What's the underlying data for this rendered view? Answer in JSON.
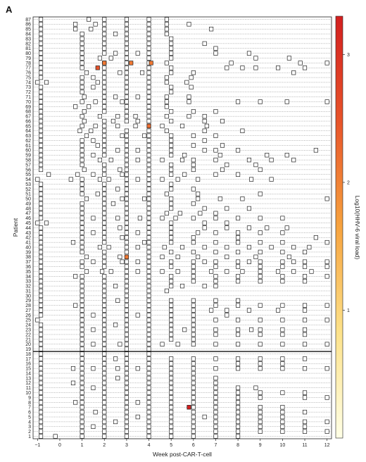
{
  "panel_label": "A",
  "chart_data": {
    "type": "heatmap",
    "title": "",
    "xlabel": "Week post-CAR-T-cell",
    "ylabel": "Patient",
    "xlim": [
      -1.2,
      12.2
    ],
    "x_ticks": [
      -1,
      0,
      1,
      2,
      3,
      4,
      5,
      6,
      7,
      8,
      9,
      10,
      11,
      12
    ],
    "patients": [
      1,
      2,
      3,
      4,
      5,
      6,
      7,
      8,
      9,
      10,
      11,
      12,
      13,
      14,
      15,
      16,
      17,
      18,
      19,
      20,
      21,
      22,
      23,
      24,
      25,
      26,
      27,
      28,
      29,
      30,
      31,
      32,
      33,
      34,
      35,
      36,
      37,
      38,
      39,
      40,
      41,
      42,
      43,
      44,
      45,
      46,
      47,
      48,
      49,
      50,
      51,
      52,
      53,
      54,
      55,
      56,
      57,
      58,
      59,
      60,
      61,
      62,
      63,
      64,
      65,
      66,
      67,
      68,
      69,
      70,
      71,
      72,
      73,
      74,
      75,
      76,
      77,
      78,
      79,
      80,
      81,
      82,
      83,
      84,
      85,
      86,
      87
    ],
    "group_separator_between": [
      18,
      19
    ],
    "colorbar": {
      "label": "Log10(HHV-6 viral load)",
      "range": [
        0,
        3.3
      ],
      "ticks": [
        1,
        2,
        3
      ],
      "colors": [
        "#ffffe6",
        "#fde28a",
        "#f7a33e",
        "#e8542a",
        "#d31f1f"
      ]
    },
    "tested_negative": {
      "87": [
        -0.85,
        1.3,
        2.0,
        3.0,
        4.0,
        4.8
      ],
      "86": [
        -0.85,
        0.7,
        1.6,
        2.0,
        3.0,
        4.0,
        4.8,
        5.8
      ],
      "85": [
        -0.85,
        0.7,
        1.4,
        2.0,
        3.0,
        4.0,
        4.8,
        6.8
      ],
      "84": [
        -0.85,
        1.0,
        2.0,
        2.5,
        3.0,
        4.0,
        4.8
      ],
      "83": [
        -0.85,
        1.0,
        2.0,
        3.0,
        4.0,
        5.0
      ],
      "82": [
        -0.85,
        1.0,
        2.0,
        3.0,
        4.0,
        5.0,
        6.5
      ],
      "81": [
        -0.85,
        1.0,
        2.0,
        3.0,
        4.0,
        5.0,
        7.0
      ],
      "80": [
        -0.85,
        1.0,
        2.0,
        2.5,
        3.0,
        3.5,
        4.0,
        5.0,
        7.0,
        8.5
      ],
      "79": [
        -0.85,
        1.0,
        1.8,
        2.3,
        3.0,
        4.0,
        5.0,
        8.8,
        10.3
      ],
      "78": [
        -0.85,
        1.0,
        2.0,
        3.0,
        4.0,
        4.8,
        7.7,
        10.8,
        12.0
      ],
      "77": [
        -0.85,
        1.0,
        2.0,
        3.0,
        4.0,
        5.0,
        7.5,
        8.2,
        8.8,
        9.8,
        11.0
      ],
      "76": [
        -0.85,
        1.2,
        2.0,
        2.7,
        3.0,
        3.7,
        4.0,
        5.0,
        6.0,
        10.5
      ],
      "75": [
        -0.85,
        1.0,
        1.5,
        2.0,
        3.0,
        4.0,
        4.8,
        5.9
      ],
      "74": [
        -1.0,
        -0.6,
        1.0,
        1.7,
        2.0,
        3.0,
        4.0,
        4.8,
        5.7
      ],
      "73": [
        -0.85,
        1.0,
        1.5,
        2.0,
        3.0,
        4.0,
        5.0,
        5.9
      ],
      "72": [
        -0.85,
        1.0,
        2.0,
        3.0,
        4.0,
        5.0
      ],
      "71": [
        -0.85,
        1.1,
        2.0,
        2.5,
        3.0,
        3.5,
        4.0,
        4.8,
        5.8
      ],
      "70": [
        -0.85,
        1.0,
        1.6,
        2.0,
        2.8,
        3.0,
        4.0,
        4.8,
        5.8,
        8.0,
        9.0,
        10.2,
        12.0
      ],
      "69": [
        -0.85,
        0.7,
        1.3,
        2.0,
        3.0,
        4.0,
        4.8
      ],
      "68": [
        -0.85,
        1.1,
        2.0,
        3.0,
        4.0,
        5.0,
        6.0,
        7.0
      ],
      "67": [
        -0.85,
        1.0,
        1.8,
        2.6,
        3.0,
        3.4,
        4.0,
        4.8,
        5.8,
        6.5
      ],
      "66": [
        -0.85,
        1.1,
        2.0,
        2.4,
        3.0,
        3.5,
        4.0,
        5.0,
        6.5,
        7.3
      ],
      "65": [
        -0.85,
        1.0,
        1.6,
        2.0,
        2.6,
        3.4,
        4.0,
        4.6,
        5.5,
        6.6
      ],
      "64": [
        -0.85,
        0.9,
        1.4,
        2.0,
        3.0,
        4.0,
        4.8,
        6.5,
        8.2
      ],
      "63": [
        -0.85,
        1.2,
        2.0,
        2.8,
        3.0,
        3.8,
        4.0,
        5.0,
        6.0,
        7.0
      ],
      "62": [
        -0.85,
        1.0,
        1.5,
        2.0,
        3.0,
        4.0,
        5.0,
        6.5
      ],
      "61": [
        -0.85,
        1.0,
        1.7,
        2.0,
        3.0,
        4.0,
        5.0,
        6.0,
        7.3
      ],
      "60": [
        -0.85,
        1.0,
        2.0,
        2.6,
        3.0,
        3.5,
        4.0,
        5.0,
        6.5,
        7.0,
        8.0,
        11.5
      ],
      "59": [
        -0.85,
        1.0,
        1.5,
        2.0,
        3.0,
        4.0,
        5.0,
        5.6,
        7.2,
        9.3,
        10.2
      ],
      "58": [
        -0.85,
        1.0,
        1.8,
        2.3,
        3.0,
        3.5,
        4.0,
        4.6,
        5.5,
        6.0,
        7.0,
        8.5,
        9.5,
        10.5
      ],
      "57": [
        -0.85,
        1.0,
        2.0,
        3.0,
        4.0,
        5.0,
        6.0,
        7.5,
        8.8
      ],
      "56": [
        -0.85,
        1.1,
        2.0,
        2.7,
        3.0,
        4.0,
        5.0,
        6.0,
        7.3,
        9.0
      ],
      "55": [
        -0.5,
        0.8,
        1.5,
        2.0,
        2.8,
        3.0,
        4.0,
        5.0,
        5.6,
        7.0,
        8.0
      ],
      "54": [
        -1.0,
        0.5,
        1.0,
        1.8,
        2.2,
        3.0,
        3.5,
        4.0,
        4.6,
        5.3,
        6.2,
        8.6,
        9.5
      ],
      "53": [
        -0.85,
        1.0,
        2.0,
        3.0,
        4.0,
        5.0
      ],
      "52": [
        -0.85,
        1.0,
        2.0,
        2.6,
        3.0,
        4.0,
        5.0,
        6.0
      ],
      "51": [
        -0.85,
        1.0,
        1.7,
        2.0,
        3.0,
        4.0,
        4.8,
        6.2,
        9.0
      ],
      "50": [
        -0.85,
        1.2,
        2.0,
        2.8,
        3.0,
        3.8,
        4.0,
        5.0,
        6.2,
        7.2,
        8.2,
        12.0
      ],
      "49": [
        -0.85,
        1.0,
        2.0,
        2.4,
        3.0,
        4.0,
        5.0,
        6.0
      ],
      "48": [
        -0.85,
        1.0,
        2.0,
        3.0,
        4.0,
        5.0,
        6.5,
        7.5,
        8.5
      ],
      "47": [
        -0.85,
        1.0,
        2.0,
        3.0,
        4.0,
        4.8,
        5.4,
        6.3,
        7.0
      ],
      "46": [
        -0.85,
        1.0,
        1.5,
        2.0,
        2.6,
        3.0,
        3.6,
        4.0,
        4.6,
        5.2,
        6.0,
        7.0,
        8.0,
        9.0,
        10.0
      ],
      "45": [
        -1.0,
        -0.6,
        1.0,
        2.0,
        3.0,
        4.0,
        5.0,
        6.5,
        7.5
      ],
      "44": [
        -0.85,
        1.0,
        2.0,
        2.7,
        3.0,
        4.0,
        5.0,
        6.5,
        7.5,
        8.5,
        9.3,
        10.2
      ],
      "43": [
        -0.85,
        1.0,
        1.5,
        2.0,
        3.0,
        3.5,
        4.0,
        5.0,
        6.2,
        7.0,
        8.0,
        9.0,
        10.0
      ],
      "42": [
        -0.85,
        1.0,
        2.0,
        2.8,
        3.0,
        4.0,
        5.0,
        6.0,
        8.0,
        11.5
      ],
      "41": [
        -0.85,
        0.6,
        1.0,
        2.0,
        3.0,
        3.8,
        4.0,
        5.0,
        6.0,
        7.0,
        8.0,
        9.0,
        10.0,
        12.0
      ],
      "40": [
        -0.85,
        1.0,
        1.8,
        2.2,
        3.0,
        3.5,
        4.0,
        4.7,
        5.5,
        6.5,
        7.5,
        8.5,
        9.5,
        10.5,
        11.2
      ],
      "39": [
        -0.85,
        1.0,
        2.0,
        3.0,
        4.0,
        5.0,
        6.0,
        7.0,
        8.0,
        9.0,
        10.0,
        11.0
      ],
      "38": [
        -0.85,
        1.2,
        2.0,
        2.7,
        4.0,
        4.6,
        5.3,
        6.2,
        7.5,
        8.8,
        10.3
      ],
      "37": [
        -0.85,
        1.0,
        1.5,
        2.0,
        2.8,
        3.0,
        3.5,
        4.0,
        5.0,
        6.0,
        6.5,
        7.0,
        8.0,
        8.5,
        9.0,
        10.0,
        10.5,
        11.0,
        12.0
      ],
      "36": [
        -0.85,
        1.0,
        2.0,
        3.0,
        4.0,
        5.0,
        6.0,
        7.0,
        8.0,
        9.0,
        10.0,
        11.0,
        12.0
      ],
      "35": [
        -0.85,
        1.2,
        1.9,
        2.3,
        3.0,
        3.5,
        4.0,
        4.6,
        5.3,
        6.0,
        6.8,
        7.5,
        8.2,
        9.0,
        9.8,
        10.5,
        11.3
      ],
      "34": [
        -0.85,
        0.7,
        1.0,
        2.0,
        3.0,
        4.0,
        5.0,
        6.0,
        7.0,
        8.0,
        9.0,
        10.0,
        11.0,
        12.0
      ],
      "33": [
        -0.85,
        1.0,
        2.0,
        3.0,
        4.0,
        5.0,
        6.0,
        7.0,
        8.0,
        9.0,
        10.0,
        11.0
      ],
      "32": [
        -0.85,
        1.0,
        2.0,
        2.5,
        3.0,
        4.0,
        5.0,
        5.5,
        6.5,
        7.0
      ],
      "31": [
        -0.85,
        1.0,
        2.0,
        3.0,
        4.0,
        4.8
      ],
      "30": [
        -0.85,
        1.0,
        2.0,
        3.0,
        4.0
      ],
      "29": [
        -0.85,
        1.0,
        2.0,
        2.6,
        3.0,
        4.0,
        5.0,
        6.0,
        7.0,
        8.0
      ],
      "28": [
        -0.85,
        0.7,
        1.0,
        2.0,
        3.0,
        4.0,
        5.0,
        6.0,
        7.0,
        8.0,
        9.0,
        10.0,
        11.0,
        12.0
      ],
      "27": [
        -0.85,
        1.0,
        2.0,
        3.0,
        4.0,
        5.0,
        6.0,
        6.8,
        7.5,
        8.5,
        9.8,
        11.0
      ],
      "26": [
        -0.85,
        1.0,
        1.5,
        2.0,
        3.0,
        3.5,
        4.0,
        5.0,
        6.0,
        7.5
      ],
      "25": [
        -1.0,
        1.0,
        2.0,
        3.0,
        4.0,
        5.0,
        6.0,
        7.0,
        8.0,
        9.0,
        10.0,
        11.0,
        12.0
      ],
      "24": [
        -0.85,
        1.0,
        2.0,
        2.5,
        3.0,
        4.0,
        5.0,
        6.0
      ],
      "23": [
        -0.85,
        1.0,
        1.5,
        2.0,
        3.0,
        4.0,
        5.0,
        5.6,
        6.0,
        7.0,
        8.0,
        8.6,
        9.0,
        10.0,
        11.0
      ],
      "22": [
        -0.85,
        1.0,
        2.0,
        3.0,
        4.0,
        5.0,
        6.0,
        7.0,
        8.0,
        9.0,
        10.0,
        11.0
      ],
      "21": [
        -0.85,
        1.0,
        2.0,
        3.0,
        4.0,
        5.0,
        6.0
      ],
      "20": [
        -0.85,
        1.0,
        1.5,
        2.0,
        2.7,
        3.0,
        4.0,
        4.6,
        5.3,
        6.0,
        7.0,
        8.0,
        9.0,
        10.0,
        11.0,
        12.0
      ],
      "19": [
        -0.85,
        1.0,
        2.0,
        3.0,
        4.0
      ],
      "18": [
        -0.85,
        1.0,
        2.0,
        3.0,
        4.0
      ],
      "17": [
        -0.85,
        1.0,
        2.0,
        2.5,
        3.0,
        4.0,
        5.0,
        6.0,
        7.0,
        8.0,
        9.0,
        10.0,
        11.0
      ],
      "16": [
        -0.85,
        1.0,
        2.0,
        3.0,
        4.0,
        5.0,
        6.0,
        8.0,
        9.0,
        10.0
      ],
      "15": [
        -0.85,
        0.6,
        1.0,
        1.5,
        2.0,
        2.6,
        3.0,
        3.5,
        4.0,
        5.0,
        6.0,
        7.0,
        8.0,
        9.0,
        10.0,
        11.0,
        12.0
      ],
      "14": [
        -0.85,
        1.0,
        2.0,
        3.0,
        4.0,
        5.0,
        6.0
      ],
      "13": [
        -0.85,
        1.0,
        2.0,
        2.6,
        3.0,
        4.0,
        5.0,
        6.0,
        7.0
      ],
      "12": [
        -0.85,
        0.6,
        1.0,
        2.0,
        3.0,
        4.0,
        5.0,
        6.0,
        7.0
      ],
      "11": [
        -0.85,
        1.0,
        1.5,
        2.0,
        3.0,
        4.0,
        5.0,
        6.0,
        7.0,
        8.0,
        8.8
      ],
      "10": [
        -0.85,
        1.0,
        2.0,
        3.0,
        4.0,
        5.0,
        6.0,
        7.0,
        8.0,
        9.0,
        10.0,
        11.0
      ],
      "9": [
        -0.85,
        1.0,
        2.0,
        3.0,
        4.0,
        5.0,
        6.0,
        7.0,
        8.0,
        9.0,
        11.0,
        12.0
      ],
      "8": [
        -0.85,
        0.7,
        1.0,
        2.0,
        3.0,
        3.5,
        4.0,
        5.0,
        6.0,
        7.0,
        8.0
      ],
      "7": [
        -0.85,
        1.0,
        2.0,
        3.0,
        4.0,
        5.0,
        6.0,
        7.0,
        8.0,
        9.0,
        10.0
      ],
      "6": [
        -0.85,
        1.0,
        1.6,
        2.0,
        3.0,
        4.0,
        5.0,
        6.0,
        7.0,
        8.0,
        9.0,
        10.0,
        11.0
      ],
      "5": [
        -0.85,
        1.0,
        2.0,
        3.0,
        3.5,
        4.0,
        5.0,
        6.0,
        6.5,
        7.0,
        8.0,
        9.0,
        10.0
      ],
      "4": [
        -0.85,
        1.0,
        2.0,
        2.5,
        3.0,
        4.0,
        5.0,
        6.0,
        7.0,
        8.0,
        9.0,
        10.0,
        11.0,
        12.0
      ],
      "3": [
        -0.85,
        1.0,
        1.5,
        2.0,
        3.0,
        4.0,
        5.0,
        6.0,
        7.0,
        8.0,
        9.0,
        10.0,
        11.0
      ],
      "2": [
        -0.85,
        1.0,
        2.0,
        3.0,
        4.0,
        5.0,
        6.0,
        7.0,
        8.0,
        9.0,
        10.0,
        11.0,
        12.0
      ],
      "1": [
        -0.85,
        -0.2,
        1.0,
        2.0,
        3.0,
        4.0,
        5.0,
        6.0,
        7.0,
        8.0
      ]
    },
    "detected": [
      {
        "patient": 78,
        "week": 2.0,
        "log10_load": 2.1
      },
      {
        "patient": 78,
        "week": 3.2,
        "log10_load": 2.1
      },
      {
        "patient": 78,
        "week": 4.1,
        "log10_load": 2.1
      },
      {
        "patient": 77,
        "week": 1.7,
        "log10_load": 2.5
      },
      {
        "patient": 65,
        "week": 4.0,
        "log10_load": 2.2
      },
      {
        "patient": 38,
        "week": 3.0,
        "log10_load": 2.1
      },
      {
        "patient": 7,
        "week": 5.8,
        "log10_load": 3.3
      }
    ]
  }
}
